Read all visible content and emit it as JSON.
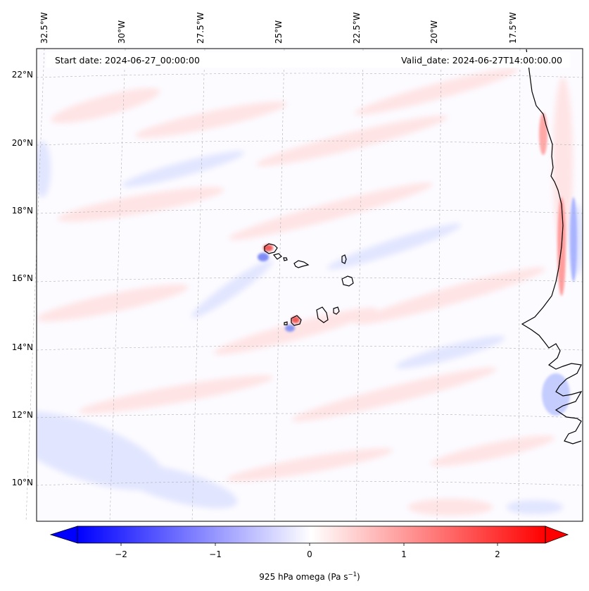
{
  "header": {
    "start_date": "Start date: 2024-06-27_00:00:00",
    "valid_date": "Valid_date: 2024-06-27T14:00:00.00"
  },
  "map": {
    "lon_ticks": [
      "32.5°W",
      "30°W",
      "27.5°W",
      "25°W",
      "22.5°W",
      "20°W",
      "17.5°W"
    ],
    "lat_ticks": [
      "22°N",
      "20°N",
      "18°N",
      "16°N",
      "14°N",
      "12°N",
      "10°N"
    ],
    "colors": {
      "negative": "#0000ff",
      "neutral": "#ffffff",
      "positive": "#ff0000",
      "coastline": "#000000",
      "gridline": "#b0b0b0"
    }
  },
  "colorbar": {
    "tick_labels": [
      "−2",
      "−1",
      "0",
      "1",
      "2"
    ],
    "label": "925 hPa omega (Pa s",
    "label_sup": "−1",
    "label_end": ")",
    "range": [
      -2.6,
      2.6
    ],
    "extend": "both"
  }
}
